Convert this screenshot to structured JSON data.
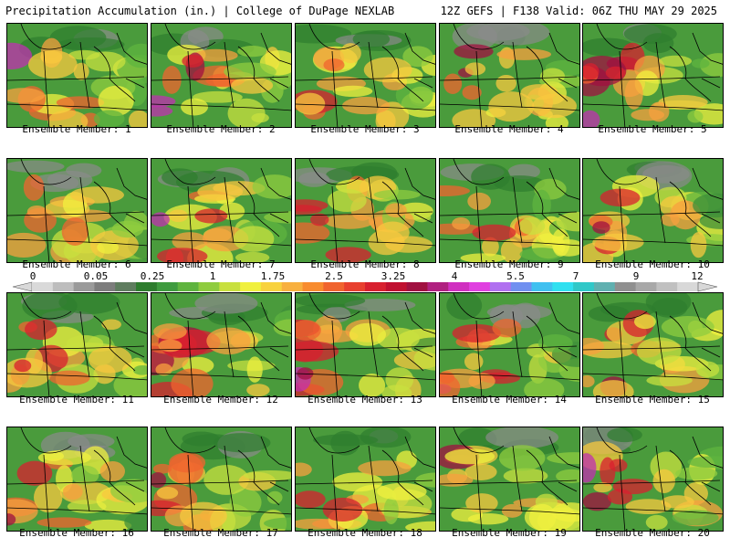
{
  "header": {
    "title_left": "Precipitation Accumulation (in.) | College of DuPage NEXLAB",
    "title_right": "12Z GEFS | F138 Valid: 06Z THU MAY 29 2025"
  },
  "panels": [
    {
      "label": "Ensemble Member: 1"
    },
    {
      "label": "Ensemble Member: 2"
    },
    {
      "label": "Ensemble Member: 3"
    },
    {
      "label": "Ensemble Member: 4"
    },
    {
      "label": "Ensemble Member: 5"
    },
    {
      "label": "Ensemble Member: 6"
    },
    {
      "label": "Ensemble Member: 7"
    },
    {
      "label": "Ensemble Member: 8"
    },
    {
      "label": "Ensemble Member: 9"
    },
    {
      "label": "Ensemble Member: 10"
    },
    {
      "label": "Ensemble Member: 11"
    },
    {
      "label": "Ensemble Member: 12"
    },
    {
      "label": "Ensemble Member: 13"
    },
    {
      "label": "Ensemble Member: 14"
    },
    {
      "label": "Ensemble Member: 15"
    },
    {
      "label": "Ensemble Member: 16"
    },
    {
      "label": "Ensemble Member: 17"
    },
    {
      "label": "Ensemble Member: 18"
    },
    {
      "label": "Ensemble Member: 19"
    },
    {
      "label": "Ensemble Member: 20"
    }
  ],
  "colorbar": {
    "labels": [
      "0",
      "0.05",
      "0.25",
      "1",
      "1.75",
      "2.5",
      "3.25",
      "4",
      "5.5",
      "7",
      "9",
      "12"
    ],
    "colors": [
      "#d9d9d9",
      "#bdbdbd",
      "#9a9a9a",
      "#7d7d7d",
      "#5f7d5f",
      "#2e7d2e",
      "#3f9b3f",
      "#5fb43f",
      "#8fcc3f",
      "#c8e03f",
      "#f0f03f",
      "#f8d23f",
      "#f8b03f",
      "#f88c2f",
      "#f0642f",
      "#e8402f",
      "#d8202f",
      "#c01030",
      "#a01040",
      "#b02080",
      "#d030c0",
      "#e040e0",
      "#b070f0",
      "#7090f0",
      "#40c0f0",
      "#30e0f0",
      "#30c8c8",
      "#60b0b0",
      "#909090",
      "#a8a8a8",
      "#c0c0c0",
      "#d8d8d8"
    ]
  }
}
